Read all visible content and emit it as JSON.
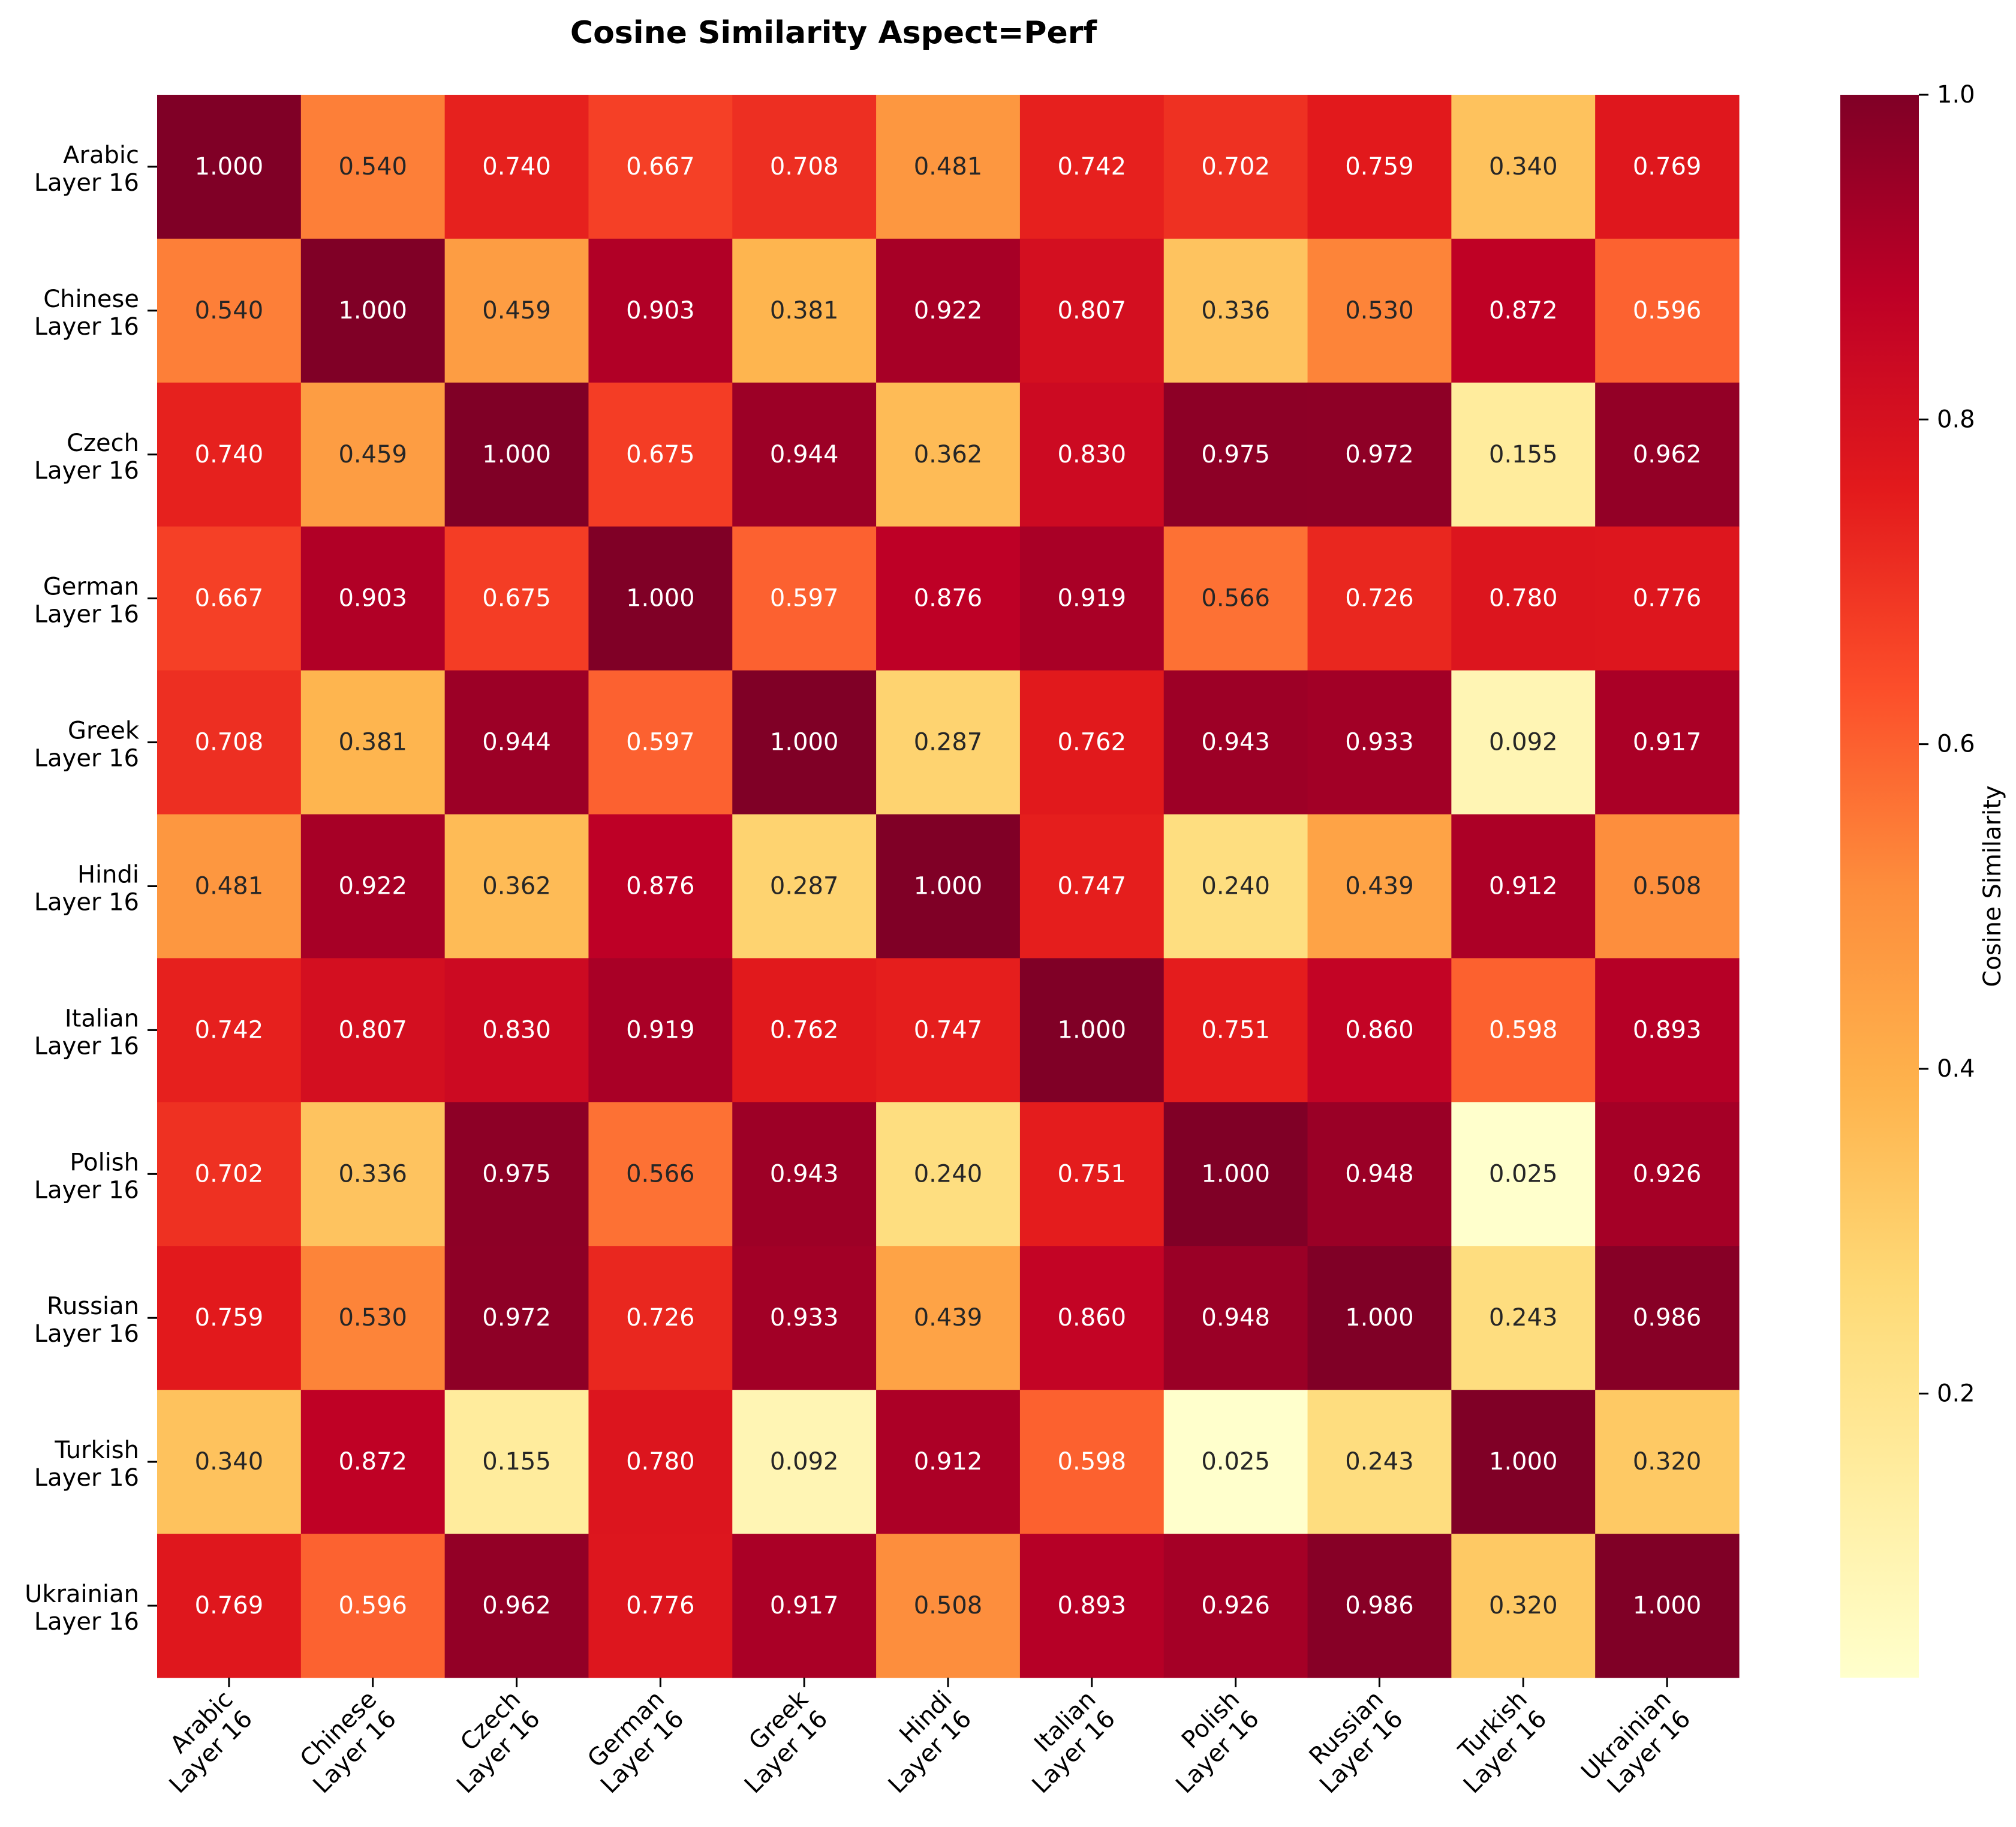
{
  "chart_data": {
    "type": "heatmap",
    "title": "Cosine Similarity Aspect=Perf",
    "labels": [
      "Arabic\nLayer 16",
      "Chinese\nLayer 16",
      "Czech\nLayer 16",
      "German\nLayer 16",
      "Greek\nLayer 16",
      "Hindi\nLayer 16",
      "Italian\nLayer 16",
      "Polish\nLayer 16",
      "Russian\nLayer 16",
      "Turkish\nLayer 16",
      "Ukrainian\nLayer 16"
    ],
    "matrix": [
      [
        1.0,
        0.54,
        0.74,
        0.667,
        0.708,
        0.481,
        0.742,
        0.702,
        0.759,
        0.34,
        0.769
      ],
      [
        0.54,
        1.0,
        0.459,
        0.903,
        0.381,
        0.922,
        0.807,
        0.336,
        0.53,
        0.872,
        0.596
      ],
      [
        0.74,
        0.459,
        1.0,
        0.675,
        0.944,
        0.362,
        0.83,
        0.975,
        0.972,
        0.155,
        0.962
      ],
      [
        0.667,
        0.903,
        0.675,
        1.0,
        0.597,
        0.876,
        0.919,
        0.566,
        0.726,
        0.78,
        0.776
      ],
      [
        0.708,
        0.381,
        0.944,
        0.597,
        1.0,
        0.287,
        0.762,
        0.943,
        0.933,
        0.092,
        0.917
      ],
      [
        0.481,
        0.922,
        0.362,
        0.876,
        0.287,
        1.0,
        0.747,
        0.24,
        0.439,
        0.912,
        0.508
      ],
      [
        0.742,
        0.807,
        0.83,
        0.919,
        0.762,
        0.747,
        1.0,
        0.751,
        0.86,
        0.598,
        0.893
      ],
      [
        0.702,
        0.336,
        0.975,
        0.566,
        0.943,
        0.24,
        0.751,
        1.0,
        0.948,
        0.025,
        0.926
      ],
      [
        0.759,
        0.53,
        0.972,
        0.726,
        0.933,
        0.439,
        0.86,
        0.948,
        1.0,
        0.243,
        0.986
      ],
      [
        0.34,
        0.872,
        0.155,
        0.78,
        0.092,
        0.912,
        0.598,
        0.025,
        0.243,
        1.0,
        0.32
      ],
      [
        0.769,
        0.596,
        0.962,
        0.776,
        0.917,
        0.508,
        0.893,
        0.926,
        0.986,
        0.32,
        1.0
      ]
    ],
    "value_format": "3 decimals",
    "colormap": "YlOrRd",
    "vmin": 0.025,
    "vmax": 1.0,
    "colorbar": {
      "label": "Cosine Similarity",
      "ticks": [
        0.2,
        0.4,
        0.6,
        0.8,
        1.0
      ],
      "tick_labels": [
        "0.2",
        "0.4",
        "0.6",
        "0.8",
        "1.0"
      ]
    },
    "xlabel": "",
    "ylabel": ""
  },
  "colors": {
    "colormap_stops": [
      "#ffffcc",
      "#ffeda0",
      "#fed976",
      "#feb24c",
      "#fd8d3c",
      "#fc4e2a",
      "#e31a1c",
      "#bd0026",
      "#800026"
    ],
    "text_dark": "#262626",
    "text_light": "#ffffff"
  }
}
